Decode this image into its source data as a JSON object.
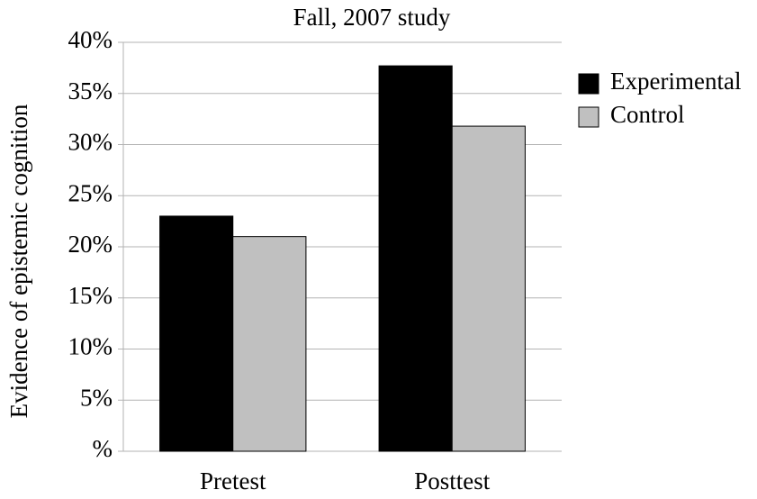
{
  "chart_data": {
    "type": "bar",
    "title": "Fall, 2007 study",
    "y_label": "Evidence of epistemic cognition",
    "categories": [
      "Pretest",
      "Posttest"
    ],
    "series": [
      {
        "name": "Experimental",
        "color": "#000000",
        "values": [
          23,
          37.7
        ]
      },
      {
        "name": "Control",
        "color": "#c0c0c0",
        "values": [
          21,
          31.8
        ]
      }
    ],
    "ylim": [
      0,
      40
    ],
    "yticks": [
      {
        "value": 0,
        "label": "%"
      },
      {
        "value": 5,
        "label": "5%"
      },
      {
        "value": 10,
        "label": "10%"
      },
      {
        "value": 15,
        "label": "15%"
      },
      {
        "value": 20,
        "label": "20%"
      },
      {
        "value": 25,
        "label": "25%"
      },
      {
        "value": 30,
        "label": "30%"
      },
      {
        "value": 35,
        "label": "35%"
      },
      {
        "value": 40,
        "label": "40%"
      }
    ],
    "grid": true,
    "legend": "right"
  }
}
